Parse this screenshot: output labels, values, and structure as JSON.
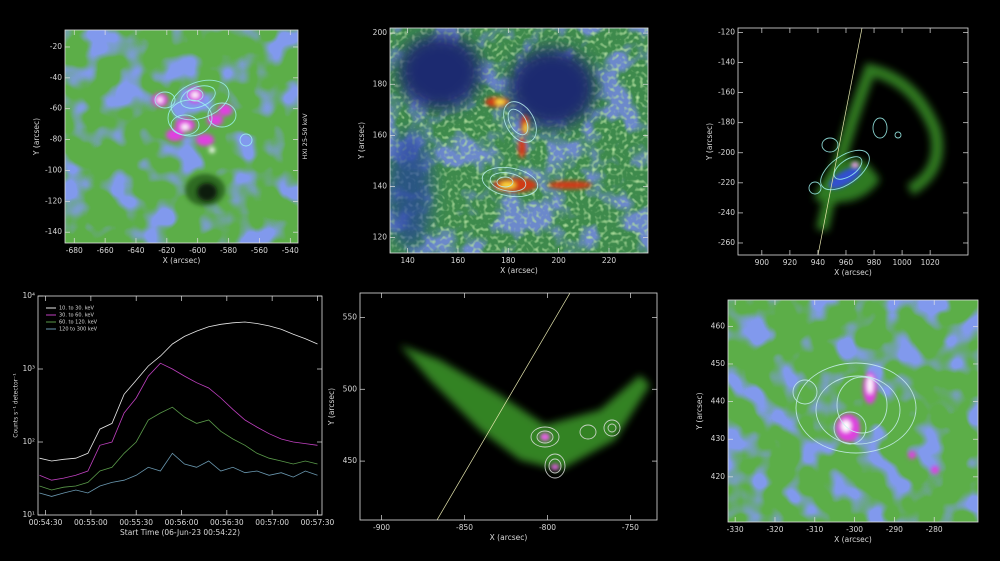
{
  "chart_data": [
    {
      "type": "image",
      "xlabel": "X (arcsec)",
      "ylabel": "Y (arcsec)",
      "side_label": "HXI 25-50 keV",
      "xlim": [
        -686,
        -535
      ],
      "ylim": [
        -147,
        -9
      ],
      "xticks": [
        -680,
        -660,
        -640,
        -620,
        -600,
        -580,
        -560,
        -540
      ],
      "yticks": [
        -140,
        -120,
        -100,
        -80,
        -60,
        -40,
        -20
      ]
    },
    {
      "type": "image",
      "xlabel": "X (arcsec)",
      "ylabel": "Y (arcsec)",
      "xlim": [
        133,
        235.5
      ],
      "ylim": [
        114,
        202
      ],
      "xticks": [
        140,
        160,
        180,
        200,
        220
      ],
      "yticks": [
        120,
        140,
        160,
        180,
        200
      ]
    },
    {
      "type": "image",
      "xlabel": "X (arcsec)",
      "ylabel": "Y (arcsec)",
      "xlim": [
        883,
        1047
      ],
      "ylim": [
        -268,
        -117
      ],
      "xticks": [
        900,
        920,
        940,
        960,
        980,
        1000,
        1020
      ],
      "yticks": [
        -260,
        -240,
        -220,
        -200,
        -180,
        -160,
        -140,
        -120
      ]
    },
    {
      "type": "line",
      "xlabel": "Start Time (06-Jun-23 00:54:22)",
      "ylabel": "Counts s⁻¹ detector⁻¹",
      "yscale": "log",
      "legend": "upper left",
      "x": [
        "00:54:26",
        "00:54:34",
        "00:54:42",
        "00:54:50",
        "00:54:58",
        "00:55:06",
        "00:55:14",
        "00:55:22",
        "00:55:30",
        "00:55:38",
        "00:55:46",
        "00:55:54",
        "00:56:02",
        "00:56:10",
        "00:56:18",
        "00:56:26",
        "00:56:34",
        "00:56:42",
        "00:56:50",
        "00:56:58",
        "00:57:06",
        "00:57:14",
        "00:57:22",
        "00:57:30"
      ],
      "xlim": [
        "00:54:25",
        "00:57:33"
      ],
      "xticks": [
        "00:54:30",
        "00:55:00",
        "00:55:30",
        "00:56:00",
        "00:56:30",
        "00:57:00",
        "00:57:30"
      ],
      "ylim": [
        10,
        10000
      ],
      "yticks": [
        {
          "value": 10,
          "label": "10¹"
        },
        {
          "value": 100,
          "label": "10²"
        },
        {
          "value": 1000,
          "label": "10³"
        },
        {
          "value": 10000,
          "label": "10⁴"
        }
      ],
      "series": [
        {
          "name": "10. to 30. keV",
          "color": "#e8e8e8",
          "values": [
            60,
            55,
            58,
            60,
            70,
            150,
            180,
            450,
            700,
            1100,
            1500,
            2200,
            2800,
            3300,
            3800,
            4100,
            4300,
            4400,
            4200,
            3900,
            3500,
            3000,
            2600,
            2200
          ]
        },
        {
          "name": "30. to 60. keV",
          "color": "#c040c0",
          "values": [
            35,
            30,
            32,
            35,
            40,
            90,
            100,
            250,
            400,
            800,
            1200,
            1000,
            800,
            650,
            550,
            400,
            280,
            200,
            160,
            130,
            110,
            100,
            95,
            90
          ]
        },
        {
          "name": "60. to 120. keV",
          "color": "#5a9a4a",
          "values": [
            25,
            22,
            24,
            25,
            28,
            40,
            45,
            70,
            100,
            200,
            250,
            300,
            220,
            180,
            200,
            140,
            110,
            90,
            70,
            60,
            55,
            50,
            55,
            50
          ]
        },
        {
          "name": "120 to 300 keV",
          "color": "#6a98b0",
          "values": [
            20,
            18,
            20,
            22,
            20,
            25,
            28,
            30,
            35,
            45,
            40,
            70,
            50,
            45,
            55,
            40,
            45,
            38,
            40,
            35,
            38,
            33,
            40,
            35
          ]
        }
      ]
    },
    {
      "type": "image",
      "xlabel": "X (arcsec)",
      "ylabel": "Y (arcsec)",
      "xlim": [
        -913,
        -734
      ],
      "ylim": [
        409,
        567
      ],
      "xticks": [
        -900,
        -850,
        -800,
        -750
      ],
      "yticks": [
        450,
        500,
        550
      ]
    },
    {
      "type": "image",
      "xlabel": "X (arcsec)",
      "ylabel": "Y (arcsec)",
      "xlim": [
        -331.8,
        -269
      ],
      "ylim": [
        408,
        467
      ],
      "xticks": [
        -330,
        -320,
        -310,
        -300,
        -290,
        -280
      ],
      "yticks": [
        420,
        430,
        440,
        450,
        460
      ]
    }
  ]
}
